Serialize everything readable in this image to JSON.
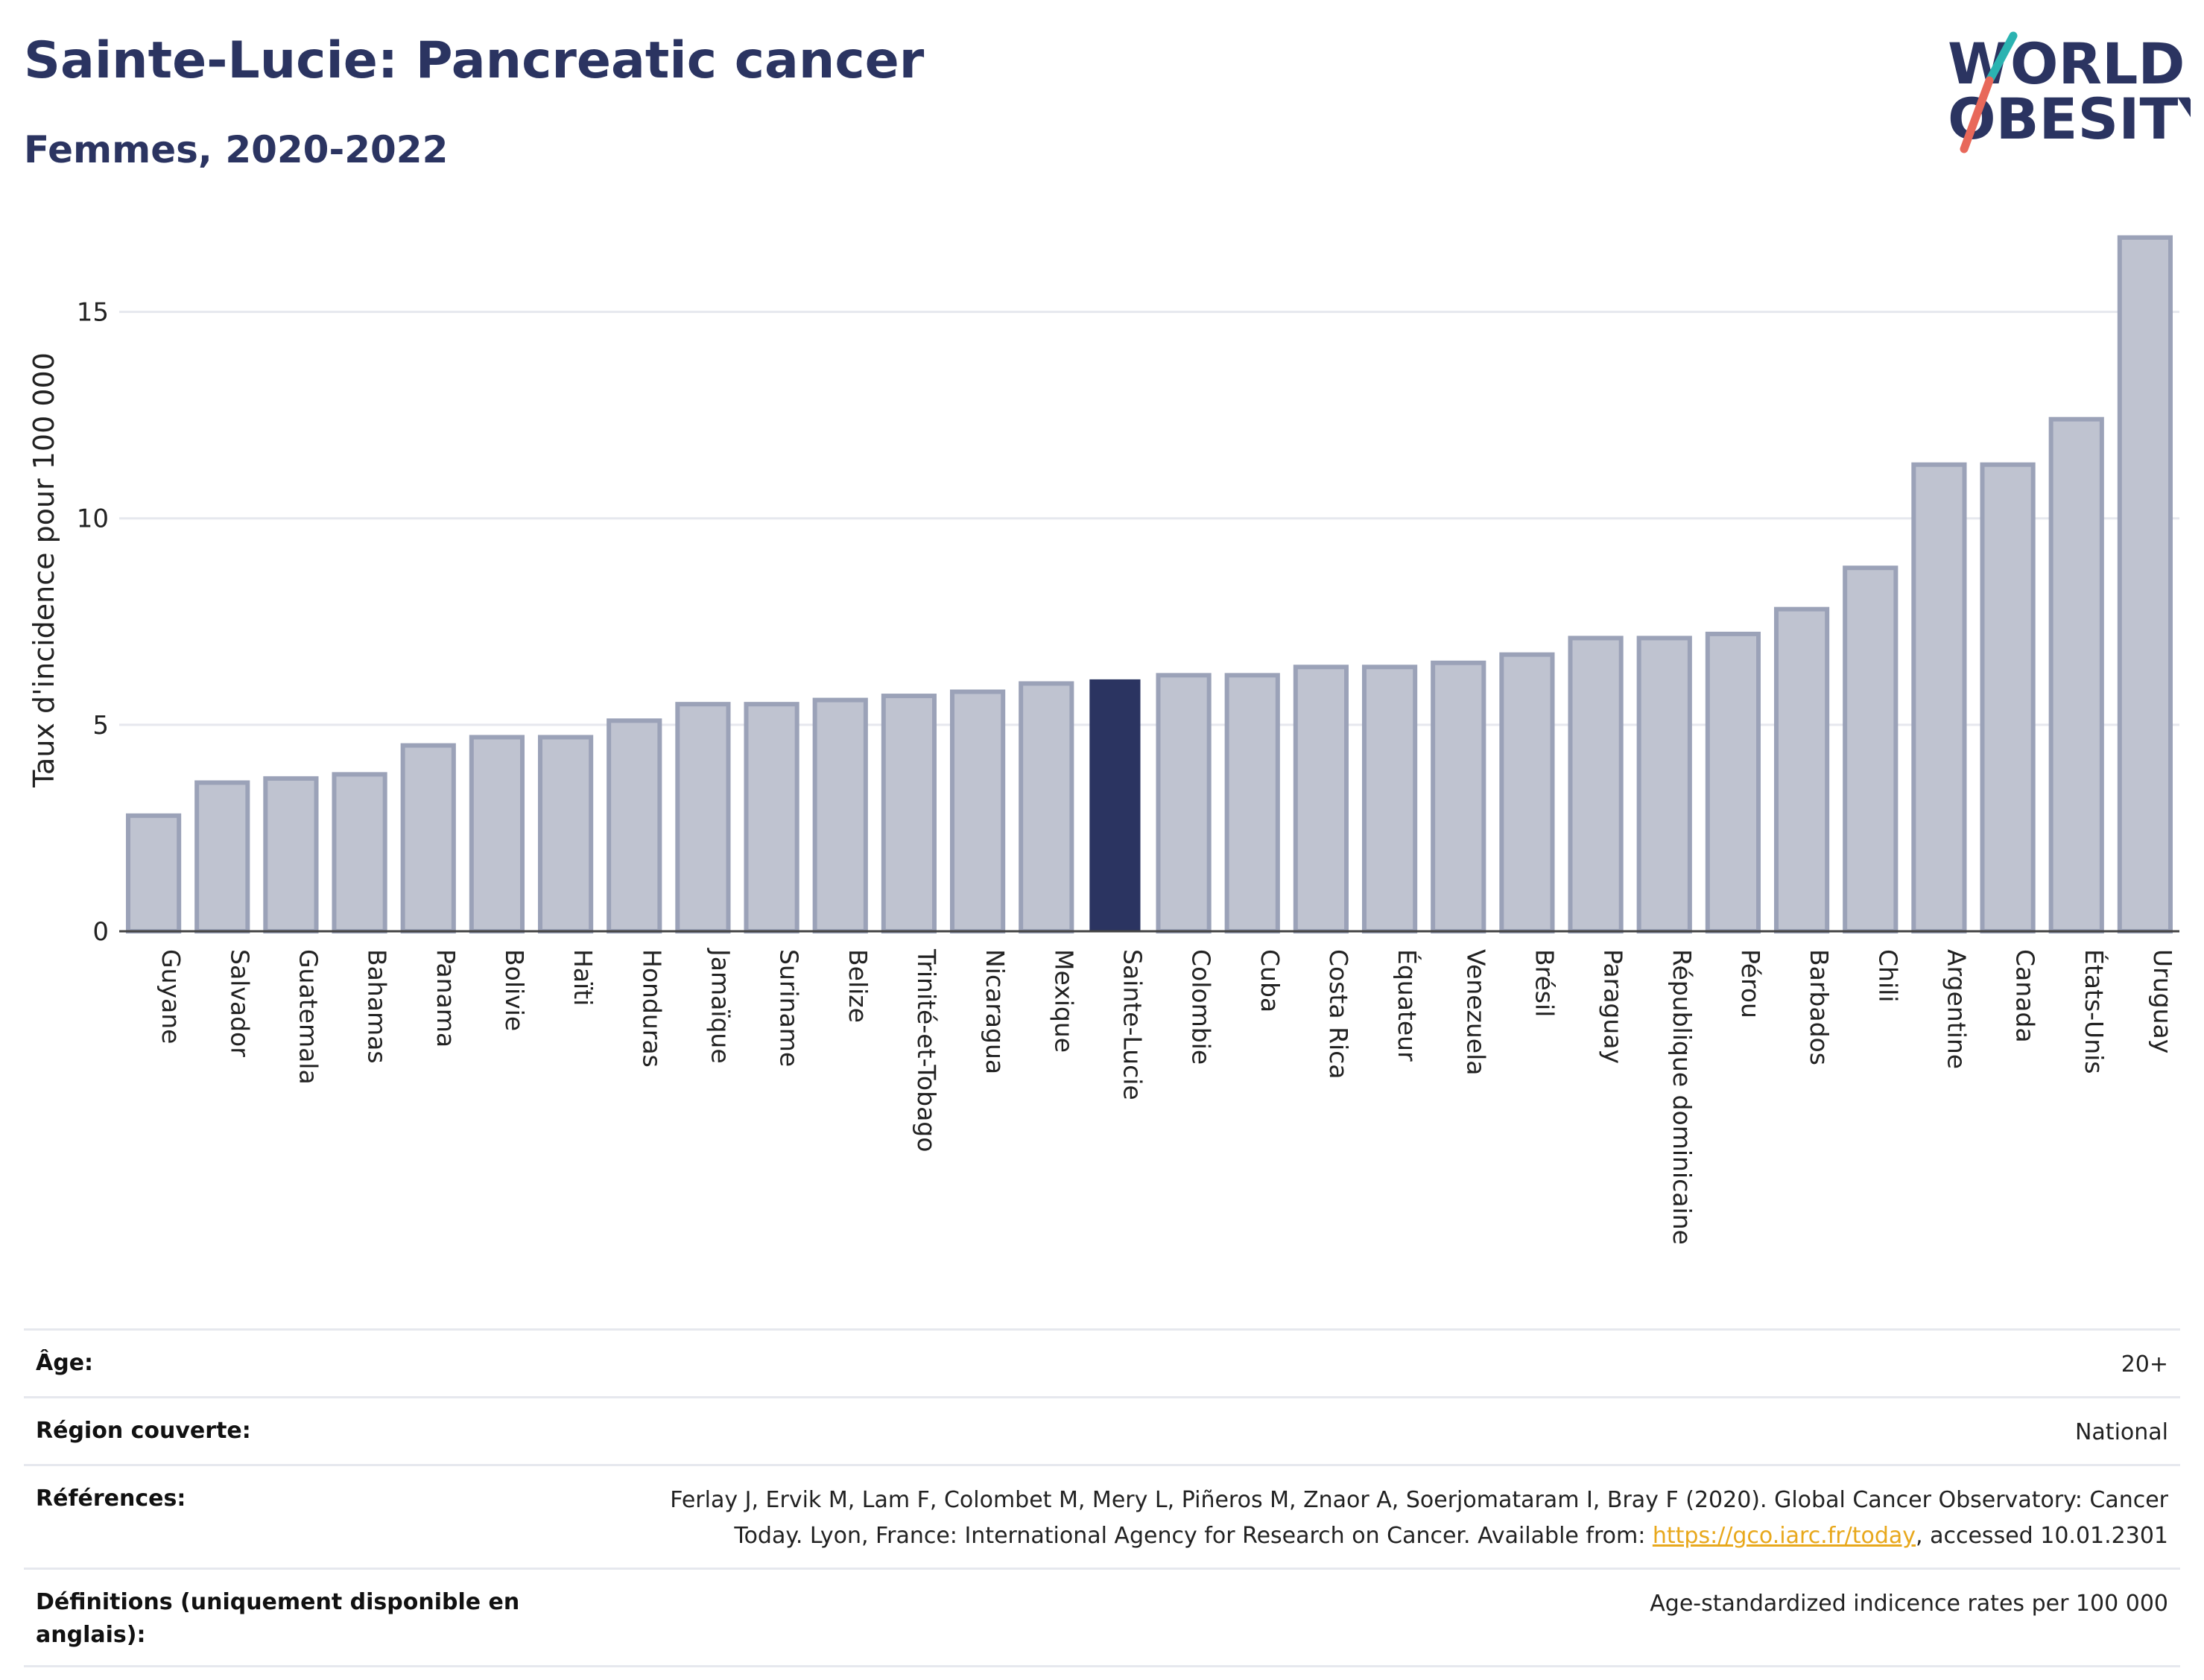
{
  "header": {
    "title": "Sainte-Lucie: Pancreatic cancer",
    "subtitle": "Femmes, 2020-2022"
  },
  "logo": {
    "line1": "WORLD",
    "line2": "OBESITY",
    "slash_colors": [
      "#2bb3b1",
      "#e8685a"
    ]
  },
  "colors": {
    "bar_default": "#bfc3d0",
    "bar_default_stroke": "#9ba2b8",
    "bar_highlight": "#2b3461",
    "title": "#2b3461",
    "grid": "#e6e8ee",
    "link": "#e8a81c"
  },
  "chart_data": {
    "type": "bar",
    "ylabel": "Taux d'incidence pour 100 000",
    "xlabel": "",
    "ylim": [
      0,
      17.5
    ],
    "yticks": [
      0,
      5,
      10,
      15
    ],
    "grid": true,
    "highlight": "Sainte-Lucie",
    "categories": [
      "Guyane",
      "Salvador",
      "Guatemala",
      "Bahamas",
      "Panama",
      "Bolivie",
      "Haïti",
      "Honduras",
      "Jamaïque",
      "Suriname",
      "Belize",
      "Trinité-et-Tobago",
      "Nicaragua",
      "Mexique",
      "Sainte-Lucie",
      "Colombie",
      "Cuba",
      "Costa Rica",
      "Équateur",
      "Venezuela",
      "Brésil",
      "Paraguay",
      "République dominicaine",
      "Pérou",
      "Barbados",
      "Chili",
      "Argentine",
      "Canada",
      "États-Unis",
      "Uruguay"
    ],
    "values": [
      2.8,
      3.6,
      3.7,
      3.8,
      4.5,
      4.7,
      4.7,
      5.1,
      5.5,
      5.5,
      5.6,
      5.7,
      5.8,
      6.0,
      6.1,
      6.2,
      6.2,
      6.4,
      6.4,
      6.5,
      6.7,
      7.1,
      7.1,
      7.2,
      7.8,
      8.8,
      11.3,
      11.3,
      12.4,
      16.8
    ]
  },
  "meta": {
    "age_label": "Âge:",
    "age_value": "20+",
    "region_label": "Région couverte:",
    "region_value": "National",
    "references_label": "Références:",
    "references_line1": "Ferlay J, Ervik M, Lam F, Colombet M, Mery L, Piñeros M, Znaor A, Soerjomataram I, Bray F (2020). Global Cancer Observatory: Cancer",
    "references_line2_prefix": "Today. Lyon, France: International Agency for Research on Cancer. Available from: ",
    "references_link": "https://gco.iarc.fr/today",
    "references_line2_suffix": ", accessed 10.01.2301",
    "definitions_label": "Définitions (uniquement disponible en anglais):",
    "definitions_value": "Age-standardized indicence rates per 100 000"
  }
}
